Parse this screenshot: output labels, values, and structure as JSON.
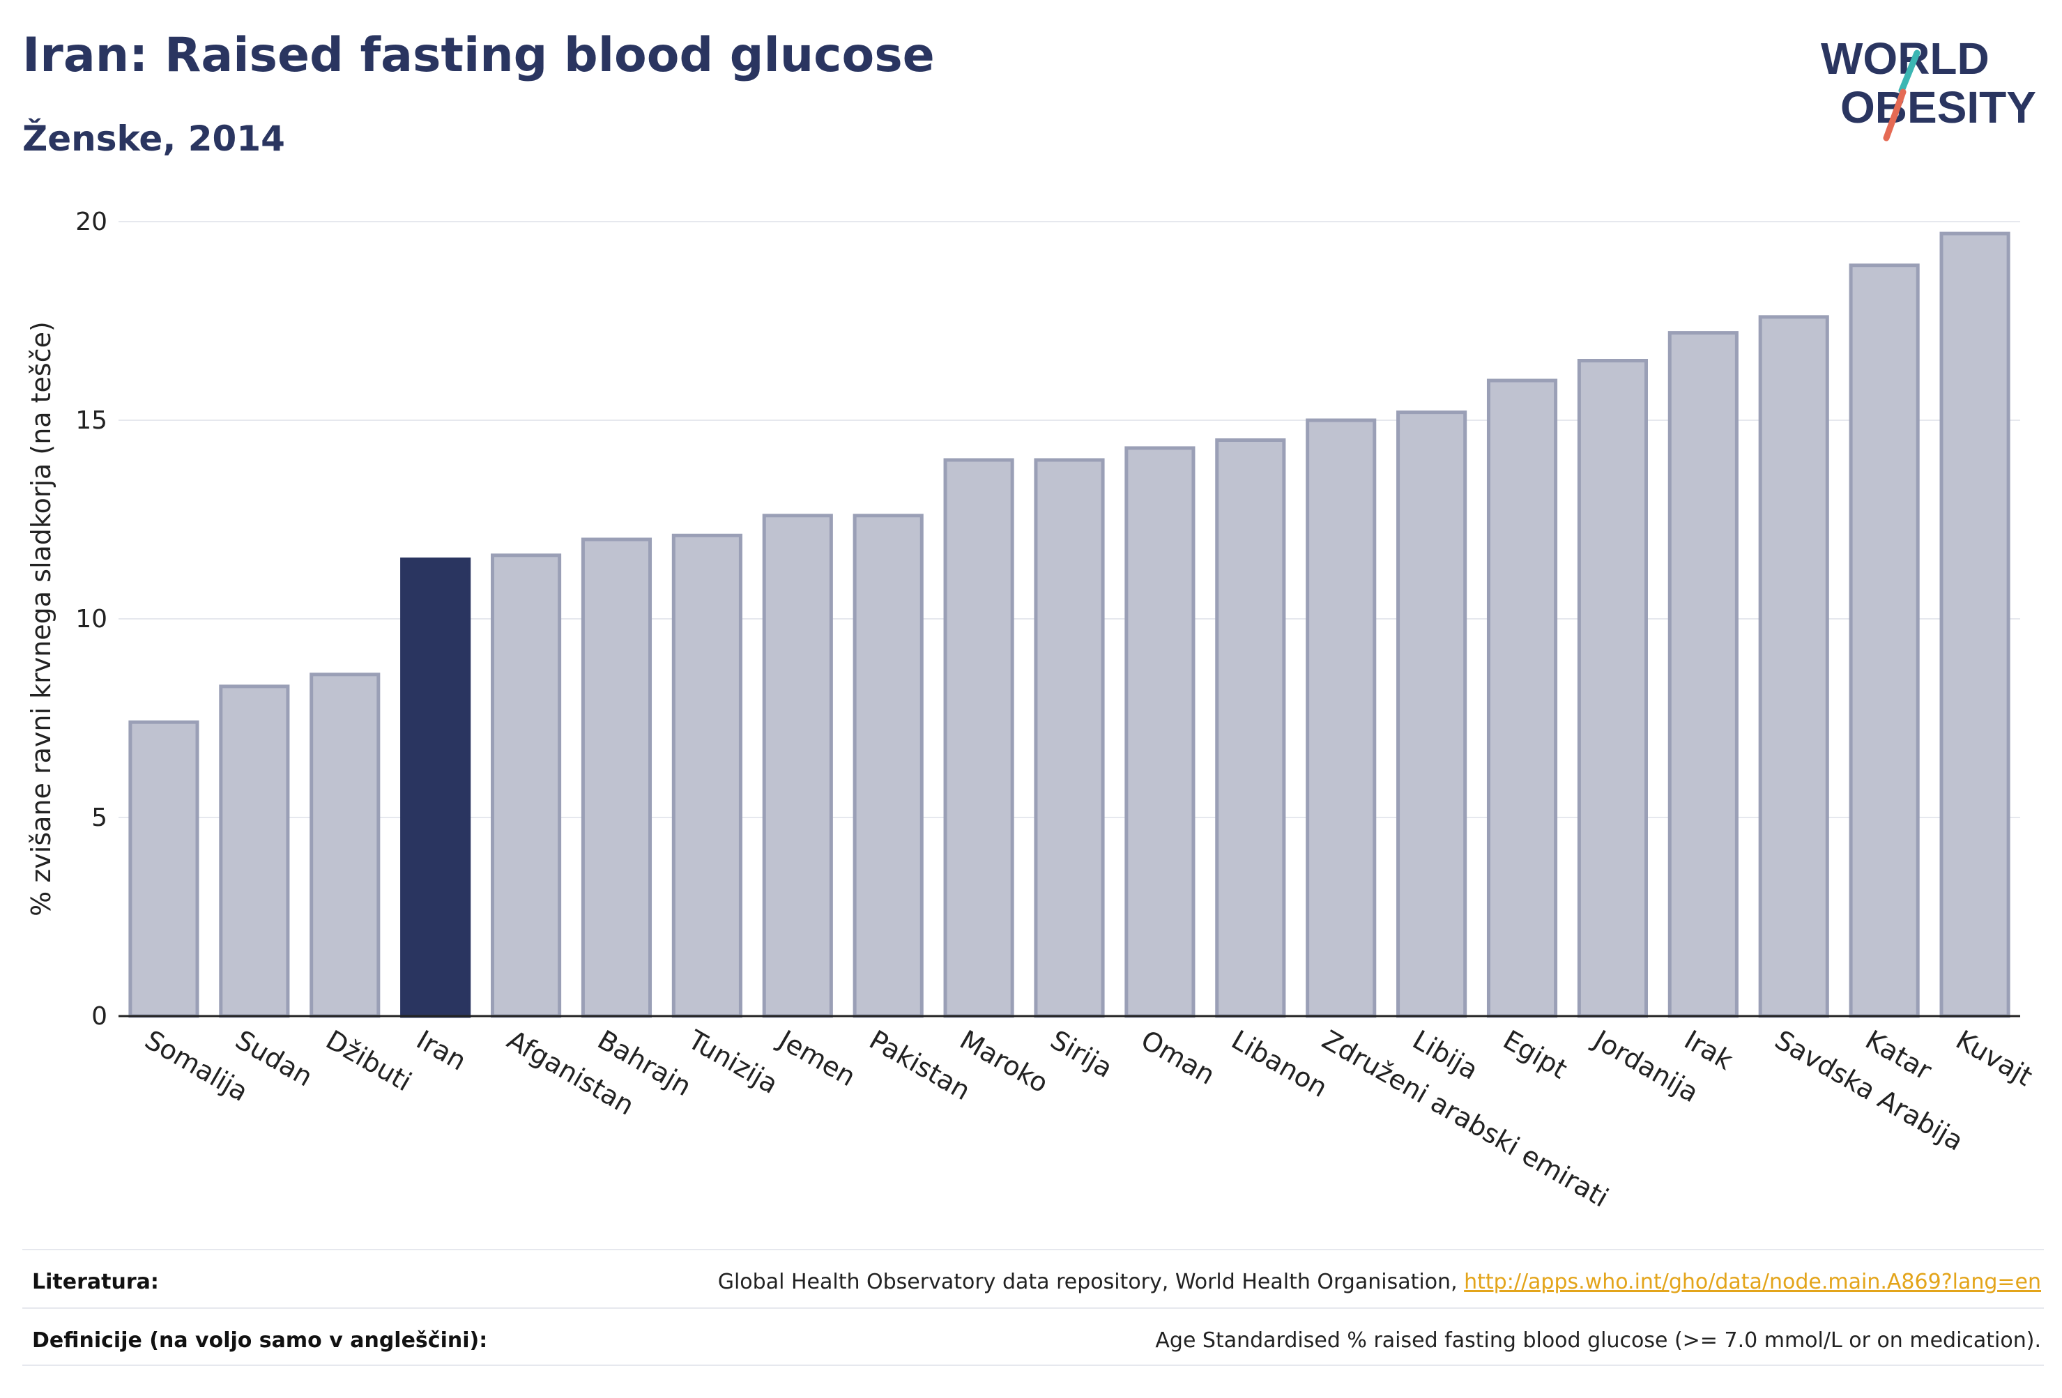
{
  "header": {
    "title": "Iran: Raised fasting blood glucose",
    "subtitle": "Ženske, 2014"
  },
  "logo": {
    "line1": "WORLD",
    "line2": "OBESITY",
    "accent_colors": [
      "#e56a54",
      "#3cb6b3"
    ]
  },
  "colors": {
    "highlight": "#2a3560",
    "bar_fill": "#bfc2d0",
    "bar_stroke": "#9a9fb6",
    "axis": "#222222",
    "grid": "#e6e8ee"
  },
  "chart_data": {
    "type": "bar",
    "title": "Iran: Raised fasting blood glucose",
    "subtitle": "Ženske, 2014",
    "xlabel": "",
    "ylabel": "% zvišane ravni krvnega sladkorja (na tešče)",
    "ylim": [
      0,
      20
    ],
    "yticks": [
      0,
      5,
      10,
      15,
      20
    ],
    "grid": true,
    "highlight": "Iran",
    "categories": [
      "Somalija",
      "Sudan",
      "Džibuti",
      "Iran",
      "Afganistan",
      "Bahrajn",
      "Tunizija",
      "Jemen",
      "Pakistan",
      "Maroko",
      "Sirija",
      "Oman",
      "Libanon",
      "Združeni arabski emirati",
      "Libija",
      "Egipt",
      "Jordanija",
      "Irak",
      "Savdska Arabija",
      "Katar",
      "Kuvajt"
    ],
    "values": [
      7.4,
      8.3,
      8.6,
      11.5,
      11.6,
      12.0,
      12.1,
      12.6,
      12.6,
      14.0,
      14.0,
      14.3,
      14.5,
      15.0,
      15.2,
      16.0,
      16.5,
      17.2,
      17.6,
      18.9,
      19.7
    ]
  },
  "footer": {
    "literature_label": "Literatura:",
    "literature_text": "Global Health Observatory data repository, World Health Organisation, ",
    "literature_link": "http://apps.who.int/gho/data/node.main.A869?lang=en",
    "definitions_label": "Definicije (na voljo samo v angleščini):",
    "definitions_text": "Age Standardised % raised fasting blood glucose (>= 7.0 mmol/L or on medication)."
  }
}
